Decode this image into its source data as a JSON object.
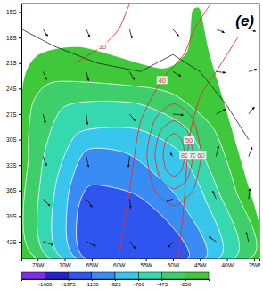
{
  "chart_data": {
    "type": "contour_map",
    "title": "(e)",
    "xlim": [
      -78,
      -34
    ],
    "ylim": [
      -44,
      -14
    ],
    "xticks": [
      {
        "value": -75,
        "label": "75W"
      },
      {
        "value": -70,
        "label": "70W"
      },
      {
        "value": -65,
        "label": "65W"
      },
      {
        "value": -60,
        "label": "60W"
      },
      {
        "value": -55,
        "label": "55W"
      },
      {
        "value": -50,
        "label": "50W"
      },
      {
        "value": -45,
        "label": "45W"
      },
      {
        "value": -40,
        "label": "40W"
      },
      {
        "value": -35,
        "label": "35W"
      }
    ],
    "yticks": [
      {
        "value": -15,
        "label": "15S"
      },
      {
        "value": -18,
        "label": "18S"
      },
      {
        "value": -21,
        "label": "21S"
      },
      {
        "value": -24,
        "label": "24S"
      },
      {
        "value": -27,
        "label": "27S"
      },
      {
        "value": -30,
        "label": "30S"
      },
      {
        "value": -33,
        "label": "33S"
      },
      {
        "value": -36,
        "label": "36S"
      },
      {
        "value": -39,
        "label": "39S"
      },
      {
        "value": -42,
        "label": "42S"
      }
    ],
    "colorbar": {
      "range": [
        -1825,
        -25
      ],
      "ticks": [
        -1600,
        -1375,
        -1150,
        -925,
        -700,
        -475,
        -250
      ],
      "colors": [
        "#7b2fe0",
        "#2222cc",
        "#2f55f0",
        "#3a8cf5",
        "#38c6ec",
        "#36d8b0",
        "#3fcf6a",
        "#3fc83a"
      ]
    },
    "filled_contours": [
      {
        "level": -100,
        "polygon": [
          [
            -44.9,
            -14.7
          ],
          [
            -43.3,
            -19.6
          ],
          [
            -40.0,
            -26.7
          ],
          [
            -36.3,
            -34.8
          ],
          [
            -34.0,
            -39.9
          ],
          [
            -34.0,
            -44.0
          ],
          [
            -78.0,
            -44.0
          ],
          [
            -78.0,
            -24.7
          ],
          [
            -75.1,
            -20.1
          ],
          [
            -66.9,
            -19.1
          ],
          [
            -52.2,
            -21.6
          ],
          [
            -47.4,
            -19.6
          ],
          [
            -46.5,
            -15.0
          ]
        ]
      },
      {
        "level": -350,
        "polygon": [
          [
            -71.8,
            -23.2
          ],
          [
            -57.1,
            -23.7
          ],
          [
            -49.8,
            -24.7
          ],
          [
            -42.5,
            -28.7
          ],
          [
            -38.4,
            -35.9
          ],
          [
            -36.0,
            -44.0
          ],
          [
            -75.1,
            -44.0
          ],
          [
            -76.7,
            -31.8
          ],
          [
            -75.9,
            -25.7
          ]
        ]
      },
      {
        "level": -600,
        "polygon": [
          [
            -70.2,
            -26.2
          ],
          [
            -57.1,
            -25.7
          ],
          [
            -47.4,
            -28.7
          ],
          [
            -41.7,
            -35.9
          ],
          [
            -38.9,
            -44.0
          ],
          [
            -72.6,
            -44.0
          ],
          [
            -74.3,
            -33.8
          ]
        ]
      },
      {
        "level": -800,
        "polygon": [
          [
            -67.7,
            -29.3
          ],
          [
            -57.1,
            -28.7
          ],
          [
            -49.0,
            -31.3
          ],
          [
            -44.1,
            -36.9
          ],
          [
            -41.7,
            -44.0
          ],
          [
            -70.2,
            -44.0
          ],
          [
            -71.8,
            -35.9
          ]
        ]
      },
      {
        "level": -1050,
        "polygon": [
          [
            -66.1,
            -31.3
          ],
          [
            -57.9,
            -31.8
          ],
          [
            -49.0,
            -36.9
          ],
          [
            -44.1,
            -44.0
          ],
          [
            -67.7,
            -44.0
          ],
          [
            -69.4,
            -36.9
          ]
        ]
      },
      {
        "level": -1300,
        "polygon": [
          [
            -65.3,
            -35.4
          ],
          [
            -57.1,
            -36.4
          ],
          [
            -50.6,
            -39.9
          ],
          [
            -47.4,
            -44.0
          ],
          [
            -66.1,
            -44.0
          ],
          [
            -67.7,
            -38.9
          ]
        ]
      }
    ],
    "line_contours": [
      {
        "value": 80,
        "closed": true,
        "points": [
          [
            -47.8,
            -31.8
          ],
          [
            -48.4,
            -30.0
          ],
          [
            -49.8,
            -29.3
          ],
          [
            -51.2,
            -30.0
          ],
          [
            -51.8,
            -31.8
          ],
          [
            -51.2,
            -33.6
          ],
          [
            -49.8,
            -34.3
          ],
          [
            -48.4,
            -33.6
          ]
        ]
      },
      {
        "value": 70,
        "closed": true,
        "points": [
          [
            -46.3,
            -31.8
          ],
          [
            -47.3,
            -29.0
          ],
          [
            -49.8,
            -27.8
          ],
          [
            -52.3,
            -29.0
          ],
          [
            -53.3,
            -31.8
          ],
          [
            -52.3,
            -34.6
          ],
          [
            -49.8,
            -35.8
          ],
          [
            -47.3,
            -34.6
          ]
        ]
      },
      {
        "value": 60,
        "closed": true,
        "points": [
          [
            -44.8,
            -31.8
          ],
          [
            -46.3,
            -27.6
          ],
          [
            -49.8,
            -25.8
          ],
          [
            -53.3,
            -27.6
          ],
          [
            -54.8,
            -31.8
          ],
          [
            -53.3,
            -36.0
          ],
          [
            -49.8,
            -37.8
          ],
          [
            -46.3,
            -36.0
          ]
        ]
      },
      {
        "value": 50,
        "closed": false,
        "points": [
          [
            -38.0,
            -18.0
          ],
          [
            -42.0,
            -22.0
          ],
          [
            -45.0,
            -25.0
          ],
          [
            -47.0,
            -30.0
          ],
          [
            -48.0,
            -38.0
          ],
          [
            -49.0,
            -44.0
          ]
        ]
      },
      {
        "value": 40,
        "closed": false,
        "points": [
          [
            -43.0,
            -14.0
          ],
          [
            -46.0,
            -17.0
          ],
          [
            -48.0,
            -20.0
          ],
          [
            -52.0,
            -23.0
          ],
          [
            -56.0,
            -28.0
          ],
          [
            -58.0,
            -36.0
          ],
          [
            -60.0,
            -44.0
          ]
        ]
      },
      {
        "value": 30,
        "closed": false,
        "points": [
          [
            -58.0,
            -14.0
          ],
          [
            -60.0,
            -17.0
          ],
          [
            -63.0,
            -19.0
          ],
          [
            -68.0,
            -21.0
          ]
        ]
      }
    ],
    "coastline": [
      [
        -78,
        -17
      ],
      [
        -72,
        -19
      ],
      [
        -64,
        -21
      ],
      [
        -56,
        -22
      ],
      [
        -50,
        -20
      ],
      [
        -45,
        -22
      ],
      [
        -40,
        -26
      ],
      [
        -36,
        -30
      ]
    ],
    "vectors": [
      {
        "lon": -74,
        "lat": -17,
        "u": 4,
        "v": -6
      },
      {
        "lon": -66,
        "lat": -17,
        "u": 3,
        "v": -7
      },
      {
        "lon": -58,
        "lat": -17,
        "u": 2,
        "v": -8
      },
      {
        "lon": -50,
        "lat": -17,
        "u": 5,
        "v": -6
      },
      {
        "lon": -42,
        "lat": -17,
        "u": 7,
        "v": -3
      },
      {
        "lon": -36,
        "lat": -17,
        "u": 6,
        "v": -2
      },
      {
        "lon": -74,
        "lat": -22,
        "u": 3,
        "v": -7
      },
      {
        "lon": -66,
        "lat": -22,
        "u": 2,
        "v": -8
      },
      {
        "lon": -58,
        "lat": -22,
        "u": 4,
        "v": -7
      },
      {
        "lon": -50,
        "lat": -22,
        "u": 7,
        "v": -4
      },
      {
        "lon": -42,
        "lat": -22,
        "u": 8,
        "v": -1
      },
      {
        "lon": -36,
        "lat": -22,
        "u": 7,
        "v": 2
      },
      {
        "lon": -74,
        "lat": -27,
        "u": 2,
        "v": -8
      },
      {
        "lon": -66,
        "lat": -27,
        "u": 1,
        "v": -9
      },
      {
        "lon": -58,
        "lat": -27,
        "u": 5,
        "v": -6
      },
      {
        "lon": -50,
        "lat": -27,
        "u": 9,
        "v": -1
      },
      {
        "lon": -42,
        "lat": -27,
        "u": 8,
        "v": 4
      },
      {
        "lon": -36,
        "lat": -27,
        "u": 5,
        "v": 6
      },
      {
        "lon": -74,
        "lat": -32,
        "u": 3,
        "v": -8
      },
      {
        "lon": -66,
        "lat": -32,
        "u": 2,
        "v": -9
      },
      {
        "lon": -58,
        "lat": -32,
        "u": -1,
        "v": -9
      },
      {
        "lon": -50,
        "lat": -32,
        "u": -2,
        "v": 3
      },
      {
        "lon": -42,
        "lat": -32,
        "u": 2,
        "v": 9
      },
      {
        "lon": -36,
        "lat": -32,
        "u": 3,
        "v": 8
      },
      {
        "lon": -74,
        "lat": -37,
        "u": 6,
        "v": -6
      },
      {
        "lon": -66,
        "lat": -37,
        "u": 5,
        "v": -7
      },
      {
        "lon": -58,
        "lat": -37,
        "u": 1,
        "v": -8
      },
      {
        "lon": -50,
        "lat": -37,
        "u": -6,
        "v": -2
      },
      {
        "lon": -42,
        "lat": -37,
        "u": -3,
        "v": 7
      },
      {
        "lon": -36,
        "lat": -37,
        "u": 1,
        "v": 9
      },
      {
        "lon": -74,
        "lat": -42,
        "u": 9,
        "v": -3
      },
      {
        "lon": -66,
        "lat": -42,
        "u": 8,
        "v": -4
      },
      {
        "lon": -58,
        "lat": -42,
        "u": 5,
        "v": -6
      },
      {
        "lon": -50,
        "lat": -42,
        "u": -4,
        "v": -5
      },
      {
        "lon": -42,
        "lat": -42,
        "u": -6,
        "v": 4
      },
      {
        "lon": -36,
        "lat": -42,
        "u": -2,
        "v": 8
      }
    ]
  }
}
